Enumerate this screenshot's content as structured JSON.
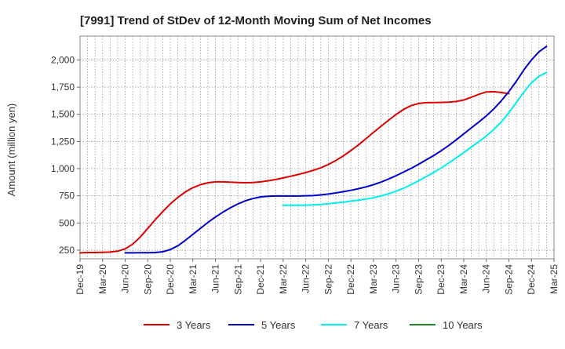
{
  "chart_data": {
    "type": "line",
    "title": "[7991]  Trend of StDev of 12-Month Moving Sum of Net Incomes",
    "xlabel": "",
    "ylabel": "Amount (million yen)",
    "ylim": [
      170,
      2220
    ],
    "y_ticks": [
      250,
      500,
      750,
      1000,
      1250,
      1500,
      1750,
      2000
    ],
    "y_tick_labels": [
      "250",
      "500",
      "750",
      "1,000",
      "1,250",
      "1,500",
      "1,750",
      "2,000"
    ],
    "x_tick_labels": [
      "Dec-19",
      "Mar-20",
      "Jun-20",
      "Sep-20",
      "Dec-20",
      "Mar-21",
      "Jun-21",
      "Sep-21",
      "Dec-21",
      "Mar-22",
      "Jun-22",
      "Sep-22",
      "Dec-22",
      "Mar-23",
      "Jun-23",
      "Sep-23",
      "Dec-23",
      "Mar-24",
      "Jun-24",
      "Sep-24",
      "Dec-24",
      "Mar-25"
    ],
    "grid": true,
    "legend_position": "bottom",
    "series": [
      {
        "name": "3 Years",
        "color": "#dd0000",
        "start_index": 0,
        "values": [
          225,
          228,
          228,
          230,
          232,
          240,
          262,
          305,
          370,
          450,
          530,
          605,
          675,
          735,
          785,
          825,
          852,
          870,
          878,
          878,
          876,
          872,
          870,
          872,
          878,
          888,
          900,
          914,
          930,
          946,
          964,
          984,
          1008,
          1038,
          1075,
          1118,
          1166,
          1218,
          1275,
          1333,
          1390,
          1445,
          1498,
          1545,
          1580,
          1600,
          1607,
          1608,
          1609,
          1612,
          1618,
          1632,
          1656,
          1684,
          1706,
          1708,
          1700,
          1690
        ]
      },
      {
        "name": "5 Years",
        "color": "#0000cc",
        "start_index": 6,
        "values": [
          225,
          225,
          226,
          226,
          228,
          235,
          255,
          290,
          340,
          395,
          450,
          505,
          555,
          600,
          640,
          675,
          705,
          725,
          740,
          746,
          748,
          748,
          748,
          748,
          750,
          752,
          758,
          766,
          776,
          788,
          800,
          815,
          832,
          852,
          876,
          904,
          935,
          968,
          1002,
          1040,
          1080,
          1120,
          1165,
          1212,
          1265,
          1320,
          1375,
          1428,
          1485,
          1550,
          1625,
          1710,
          1805,
          1910,
          2000,
          2075,
          2125
        ]
      },
      {
        "name": "7 Years",
        "color": "#00eeee",
        "start_index": 27,
        "values": [
          662,
          662,
          663,
          664,
          666,
          670,
          676,
          684,
          692,
          701,
          710,
          720,
          732,
          748,
          768,
          792,
          820,
          852,
          888,
          926,
          964,
          1006,
          1052,
          1100,
          1148,
          1198,
          1248,
          1300,
          1360,
          1430,
          1515,
          1610,
          1705,
          1790,
          1850,
          1885
        ]
      },
      {
        "name": "10 Years",
        "color": "#228822",
        "start_index": 0,
        "values": []
      }
    ]
  }
}
